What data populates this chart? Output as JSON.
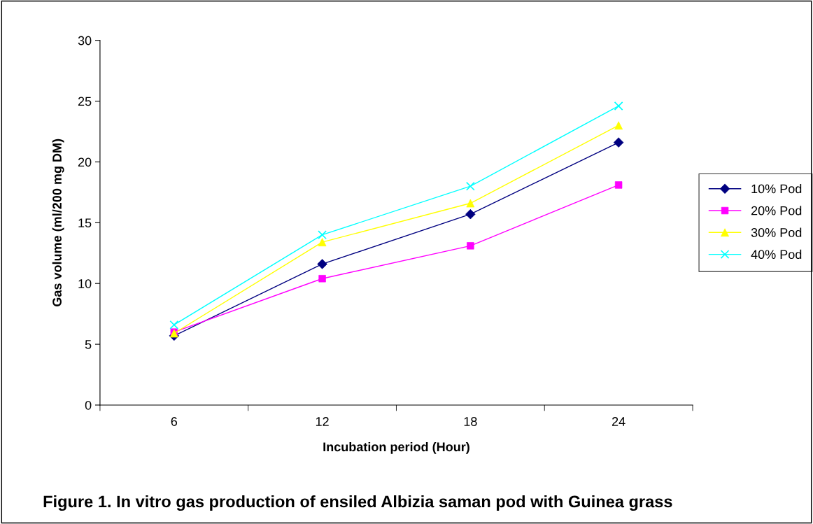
{
  "chart_data": {
    "type": "line",
    "title": "Figure 1. In vitro gas production of ensiled Albizia saman pod with Guinea grass",
    "xlabel": "Incubation period (Hour)",
    "ylabel": "Gas volume (ml/200 mg DM)",
    "categories": [
      "6",
      "12",
      "18",
      "24"
    ],
    "series": [
      {
        "name": "10% Pod",
        "color": "#000080",
        "marker": "diamond",
        "values": [
          5.7,
          11.6,
          15.7,
          21.6
        ]
      },
      {
        "name": "20% Pod",
        "color": "#ff00ff",
        "marker": "square",
        "values": [
          6.0,
          10.4,
          13.1,
          18.1
        ]
      },
      {
        "name": "30% Pod",
        "color": "#ffff00",
        "marker": "triangle",
        "values": [
          5.9,
          13.4,
          16.6,
          23.0
        ]
      },
      {
        "name": "40% Pod",
        "color": "#00ffff",
        "marker": "cross",
        "values": [
          6.6,
          14.0,
          18.0,
          24.6
        ]
      }
    ],
    "ylim": [
      0,
      30
    ],
    "yticks": [
      0,
      5,
      10,
      15,
      20,
      25,
      30
    ],
    "grid": false,
    "legend": "right",
    "line_style": "solid"
  }
}
